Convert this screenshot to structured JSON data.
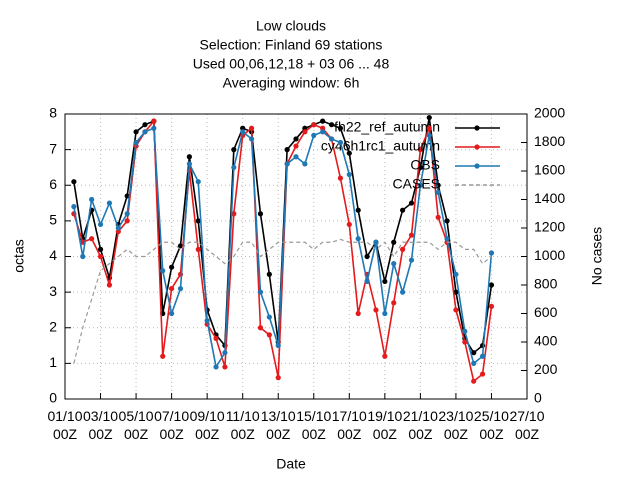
{
  "chart_data": {
    "type": "line",
    "title": "Low clouds",
    "subtitle": [
      "Selection: Finland     69 stations",
      "Used  00,06,12,18  + 03 06 ... 48",
      "Averaging window:  6h"
    ],
    "xlabel": "Date",
    "ylabel": "octas",
    "y2label": "No cases",
    "x": [
      0.5,
      1,
      1.5,
      2,
      2.5,
      3,
      3.5,
      4,
      4.5,
      5,
      5.5,
      6,
      6.5,
      7,
      7.5,
      8,
      8.5,
      9,
      9.5,
      10,
      10.5,
      11,
      11.5,
      12,
      12.5,
      13,
      13.5,
      14,
      14.5,
      15,
      15.5,
      16,
      16.5,
      17,
      17.5,
      18,
      18.5,
      19,
      19.5,
      20,
      20.5,
      21,
      21.5,
      22,
      22.5,
      23,
      23.5,
      24
    ],
    "xlim": [
      0,
      26
    ],
    "xticks": [
      {
        "value": 0,
        "label": "01/10\n00Z"
      },
      {
        "value": 2,
        "label": "03/10\n00Z"
      },
      {
        "value": 4,
        "label": "05/10\n00Z"
      },
      {
        "value": 6,
        "label": "07/10\n00Z"
      },
      {
        "value": 8,
        "label": "09/10\n00Z"
      },
      {
        "value": 10,
        "label": "11/10\n00Z"
      },
      {
        "value": 12,
        "label": "13/10\n00Z"
      },
      {
        "value": 14,
        "label": "15/10\n00Z"
      },
      {
        "value": 16,
        "label": "17/10\n00Z"
      },
      {
        "value": 18,
        "label": "19/10\n00Z"
      },
      {
        "value": 20,
        "label": "21/10\n00Z"
      },
      {
        "value": 22,
        "label": "23/10\n00Z"
      },
      {
        "value": 24,
        "label": "25/10\n00Z"
      },
      {
        "value": 26,
        "label": "27/10\n00Z"
      }
    ],
    "ylim": [
      0,
      8
    ],
    "yticks": [
      0,
      1,
      2,
      3,
      4,
      5,
      6,
      7,
      8
    ],
    "y2lim": [
      0,
      2000
    ],
    "y2ticks": [
      0,
      200,
      400,
      600,
      800,
      1000,
      1200,
      1400,
      1600,
      1800,
      2000
    ],
    "grid": true,
    "series": [
      {
        "name": "fh22_ref_autumn",
        "color": "#000000",
        "values": [
          6.1,
          4.5,
          5.3,
          4.2,
          3.4,
          4.9,
          5.7,
          7.5,
          7.7,
          7.8,
          2.4,
          3.7,
          4.3,
          6.8,
          5.0,
          2.5,
          1.8,
          1.5,
          7.0,
          7.6,
          7.5,
          5.2,
          3.5,
          1.6,
          7.0,
          7.3,
          7.6,
          7.7,
          7.8,
          7.7,
          7.6,
          6.9,
          5.3,
          4.0,
          4.4,
          3.3,
          4.4,
          5.3,
          5.5,
          6.5,
          7.9,
          6.0,
          5.0,
          3.0,
          1.7,
          1.3,
          1.5,
          3.2
        ]
      },
      {
        "name": "cy46h1rc1_autumn",
        "color": "#e41a1c",
        "values": [
          5.2,
          4.4,
          4.5,
          4.0,
          3.2,
          4.7,
          5.0,
          7.1,
          7.5,
          7.8,
          1.2,
          3.1,
          3.5,
          6.4,
          4.2,
          2.1,
          1.7,
          0.9,
          5.2,
          7.4,
          7.6,
          2.0,
          1.8,
          0.6,
          6.6,
          7.1,
          7.5,
          7.7,
          7.6,
          7.3,
          6.2,
          4.9,
          2.4,
          3.5,
          2.5,
          1.2,
          2.7,
          4.2,
          4.6,
          7.0,
          7.6,
          5.1,
          4.4,
          2.5,
          1.6,
          0.5,
          0.7,
          2.6
        ]
      },
      {
        "name": "OBS",
        "color": "#1f78b4",
        "values": [
          5.4,
          4.0,
          5.6,
          4.9,
          5.5,
          4.8,
          5.2,
          7.2,
          7.5,
          7.6,
          3.6,
          2.4,
          3.1,
          6.6,
          6.1,
          2.2,
          0.9,
          1.3,
          6.5,
          7.5,
          7.3,
          3.0,
          2.3,
          1.5,
          6.6,
          6.8,
          6.6,
          7.4,
          7.5,
          7.3,
          7.2,
          6.3,
          4.5,
          3.3,
          4.4,
          2.4,
          3.8,
          3.0,
          3.9,
          6.0,
          7.4,
          5.8,
          4.5,
          3.5,
          1.9,
          1.0,
          1.2,
          4.1
        ]
      },
      {
        "name": "CASES",
        "color": "#999999",
        "dashed": true,
        "axis": "y2",
        "values": [
          250,
          500,
          700,
          900,
          950,
          1000,
          1050,
          1000,
          1000,
          1050,
          1100,
          1100,
          1050,
          1100,
          1100,
          1050,
          1000,
          950,
          1000,
          1100,
          1100,
          1000,
          1050,
          1100,
          1100,
          1100,
          1100,
          1050,
          1100,
          1100,
          1120,
          1100,
          1100,
          1100,
          1050,
          1100,
          1000,
          1100,
          1100,
          1100,
          1100,
          1050,
          1100,
          1100,
          1050,
          1050,
          950,
          1000
        ]
      }
    ]
  }
}
